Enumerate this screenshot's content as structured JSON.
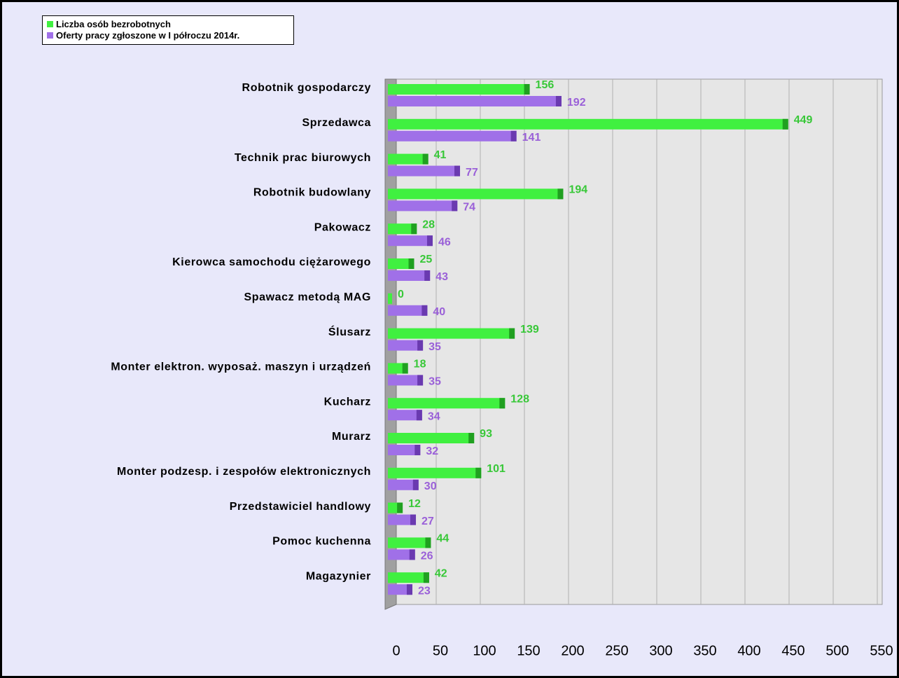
{
  "chart_data": {
    "type": "barh",
    "categories": [
      "Robotnik gospodarczy",
      "Sprzedawca",
      "Technik prac biurowych",
      "Robotnik budowlany",
      "Pakowacz",
      "Kierowca samochodu ciężarowego",
      "Spawacz metodą MAG",
      "Ślusarz",
      "Monter elektron. wyposaż. maszyn i urządzeń",
      "Kucharz",
      "Murarz",
      "Monter podzesp. i zespołów elektronicznych",
      "Przedstawiciel handlowy",
      "Pomoc kuchenna",
      "Magazynier"
    ],
    "series": [
      {
        "name": "Liczba osób bezrobotnych",
        "color": "#40f040",
        "values": [
          156,
          449,
          41,
          194,
          28,
          25,
          0,
          139,
          18,
          128,
          93,
          101,
          12,
          44,
          42
        ]
      },
      {
        "name": "Oferty pracy zgłoszone w I półroczu 2014r.",
        "color": "#a070e8",
        "values": [
          192,
          141,
          77,
          74,
          46,
          43,
          40,
          35,
          35,
          34,
          32,
          30,
          27,
          26,
          23
        ]
      }
    ],
    "xlim": [
      0,
      550
    ],
    "xticks": [
      0,
      50,
      100,
      150,
      200,
      250,
      300,
      350,
      400,
      450,
      500,
      550
    ],
    "grid": true,
    "legend": "top-left"
  }
}
